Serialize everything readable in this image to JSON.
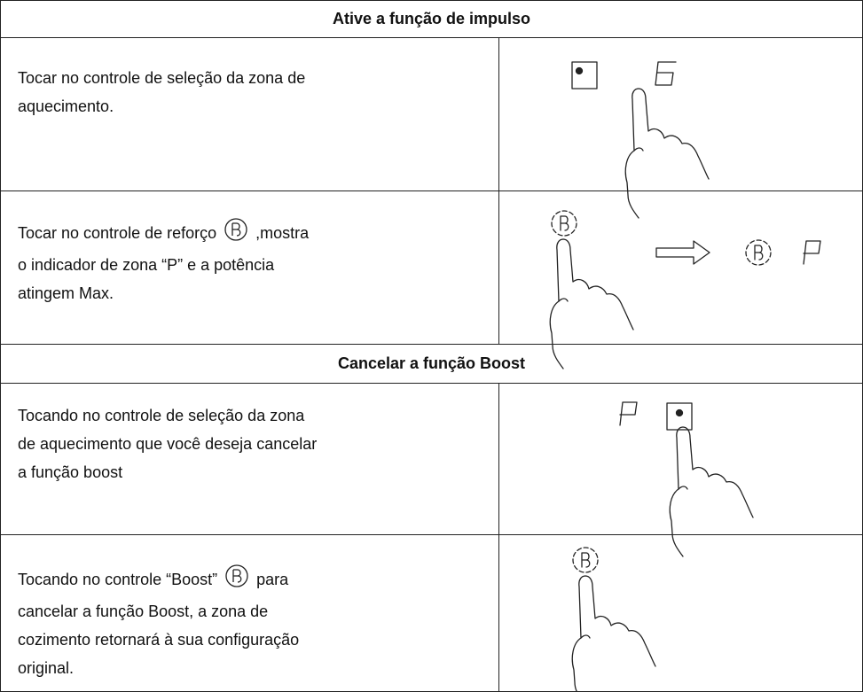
{
  "sections": [
    {
      "header": "Ative a função de impulso",
      "rows": [
        {
          "lines": [
            [
              "Tocar no controle de seleção da zona de"
            ],
            [
              "aquecimento."
            ]
          ]
        },
        {
          "lines": [
            [
              "Tocar no controle de reforço",
              ",mostra"
            ],
            [
              "o indicador de zona “P” e a potência"
            ],
            [
              "atingem Max."
            ]
          ]
        }
      ]
    },
    {
      "header": "Cancelar a função Boost",
      "rows": [
        {
          "lines": [
            [
              "Tocando no controle de seleção da zona"
            ],
            [
              "de aquecimento que você deseja cancelar"
            ],
            [
              "a função boost"
            ]
          ]
        },
        {
          "lines": [
            [
              "Tocando no controle “Boost”",
              "para"
            ],
            [
              "cancelar a função Boost, a zona de"
            ],
            [
              "cozimento retornará à sua configuração"
            ],
            [
              "original."
            ]
          ]
        }
      ]
    }
  ]
}
